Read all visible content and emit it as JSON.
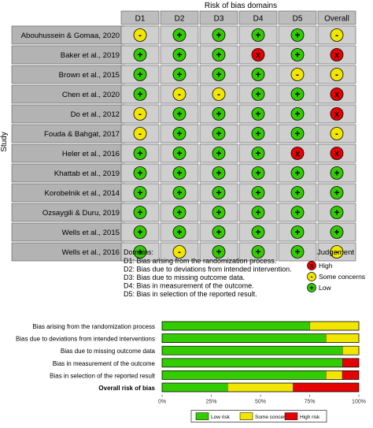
{
  "colors": {
    "high": "#e60000",
    "some_concerns": "#f2e600",
    "low": "#33cc00",
    "header_fill": "#bdbdbd",
    "cell_fill": "#cfcfcf",
    "row_label_fill": "#b3b3b3"
  },
  "traffic_light": {
    "title": "Risk of bias domains",
    "y_axis_label": "Study",
    "domains": [
      "D1",
      "D2",
      "D3",
      "D4",
      "D5",
      "Overall"
    ],
    "symbols": {
      "low": "+",
      "some": "-",
      "high": "X"
    },
    "studies": [
      {
        "name": "Abouhussein & Gomaa, 2020",
        "judgements": [
          "some",
          "low",
          "low",
          "low",
          "low",
          "some"
        ]
      },
      {
        "name": "Baker et al., 2019",
        "judgements": [
          "low",
          "low",
          "low",
          "high",
          "low",
          "high"
        ]
      },
      {
        "name": "Brown et al., 2015",
        "judgements": [
          "low",
          "low",
          "low",
          "low",
          "some",
          "some"
        ]
      },
      {
        "name": "Chen et al., 2020",
        "judgements": [
          "low",
          "some",
          "some",
          "low",
          "low",
          "high"
        ]
      },
      {
        "name": "Do et al., 2012",
        "judgements": [
          "some",
          "low",
          "low",
          "low",
          "low",
          "high"
        ]
      },
      {
        "name": "Fouda & Bahgat, 2017",
        "judgements": [
          "some",
          "low",
          "low",
          "low",
          "low",
          "some"
        ]
      },
      {
        "name": "Heler et al., 2016",
        "judgements": [
          "low",
          "low",
          "low",
          "low",
          "high",
          "high"
        ]
      },
      {
        "name": "Khattab et al., 2019",
        "judgements": [
          "low",
          "low",
          "low",
          "low",
          "low",
          "low"
        ]
      },
      {
        "name": "Korobelnik et al., 2014",
        "judgements": [
          "low",
          "low",
          "low",
          "low",
          "low",
          "low"
        ]
      },
      {
        "name": "Ozsaygili & Duru, 2019",
        "judgements": [
          "low",
          "low",
          "low",
          "low",
          "low",
          "low"
        ]
      },
      {
        "name": "Wells et al., 2015",
        "judgements": [
          "low",
          "low",
          "low",
          "low",
          "low",
          "low"
        ]
      },
      {
        "name": "Wells et al., 2016",
        "judgements": [
          "low",
          "some",
          "low",
          "low",
          "low",
          "some"
        ]
      }
    ],
    "domains_legend": {
      "title": "Domains:",
      "items": [
        "D1: Bias arising from the randomization process.",
        "D2: Bias due to deviations from intended intervention.",
        "D3: Bias due to missing outcome data.",
        "D4: Bias in measurement of the outcome.",
        "D5: Bias in selection of the reported result."
      ]
    },
    "judgement_legend": {
      "title": "Judgement",
      "items": [
        {
          "key": "high",
          "label": "High"
        },
        {
          "key": "some",
          "label": "Some concerns"
        },
        {
          "key": "low",
          "label": "Low"
        }
      ]
    }
  },
  "chart_data": {
    "type": "bar",
    "orientation": "horizontal-stacked",
    "categories": [
      "Bias arising from the randomization process",
      "Bias due to deviations from intended interventions",
      "Bias due to missing outcome data",
      "Bias in measurement of the outcome",
      "Bias in selection of the reported result",
      "Overall risk of bias"
    ],
    "bold_category": "Overall risk of bias",
    "series": [
      {
        "name": "Low risk",
        "key": "low",
        "values": [
          75,
          83.3,
          91.7,
          91.7,
          83.3,
          33.3
        ]
      },
      {
        "name": "Some concerns",
        "key": "some",
        "values": [
          25,
          16.7,
          8.3,
          0,
          8.3,
          33.3
        ]
      },
      {
        "name": "High risk",
        "key": "high",
        "values": [
          0,
          0,
          0,
          8.3,
          8.3,
          33.3
        ]
      }
    ],
    "x_ticks": [
      "0%",
      "25%",
      "50%",
      "75%",
      "100%"
    ],
    "xlim": [
      0,
      100
    ],
    "legend_position": "bottom"
  }
}
